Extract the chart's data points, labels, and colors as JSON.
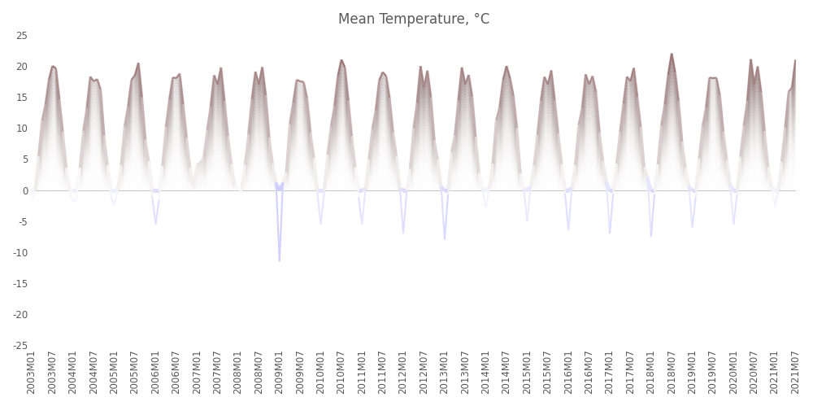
{
  "title": "Mean Temperature, °C",
  "ylim": [
    -25,
    25
  ],
  "yticks": [
    -25,
    -20,
    -15,
    -10,
    -5,
    0,
    5,
    10,
    15,
    20,
    25
  ],
  "ylabel": "",
  "xlabel": "",
  "background_color": "#ffffff",
  "grid_color": "#c8c8c8",
  "title_fontsize": 12,
  "title_color": "#595959",
  "tick_color": "#595959",
  "tick_fontsize": 8.5,
  "seasonal_base": [
    -2,
    0,
    5,
    10,
    14,
    18,
    20,
    19,
    15,
    9,
    4,
    0
  ],
  "year_start": 2003,
  "year_end": 2021,
  "month_end": 7,
  "overrides": {
    "2003M07": 20.0,
    "2004M07": 17.5,
    "2005M07": 18.5,
    "2006M07": 18.0,
    "2006M01": -5.5,
    "2007M01": 4.0,
    "2007M02": 4.5,
    "2007M07": 17.0,
    "2008M01": 0.5,
    "2008M07": 17.0,
    "2009M01": -11.5,
    "2009M07": 17.5,
    "2010M01": -5.5,
    "2010M07": 21.0,
    "2011M01": -5.5,
    "2011M07": 19.0,
    "2012M01": -7.0,
    "2012M07": 16.5,
    "2013M01": -8.0,
    "2013M07": 17.0,
    "2014M07": 20.0,
    "2015M07": 17.0,
    "2015M01": -5.0,
    "2016M07": 17.0,
    "2016M01": -6.5,
    "2017M01": -7.0,
    "2017M07": 17.5,
    "2018M07": 22.0,
    "2018M01": -7.5,
    "2019M07": 18.0,
    "2019M01": -6.0,
    "2020M07": 17.0,
    "2020M01": -5.5,
    "2021M07": 21.0
  },
  "line_pos_color_top": "#cc4444",
  "line_pos_color_bot": "#ffffff",
  "line_neg_color_top": "#8888cc",
  "line_neg_color_bot": "#ffffff",
  "n_layers": 40,
  "max_linewidth": 18
}
